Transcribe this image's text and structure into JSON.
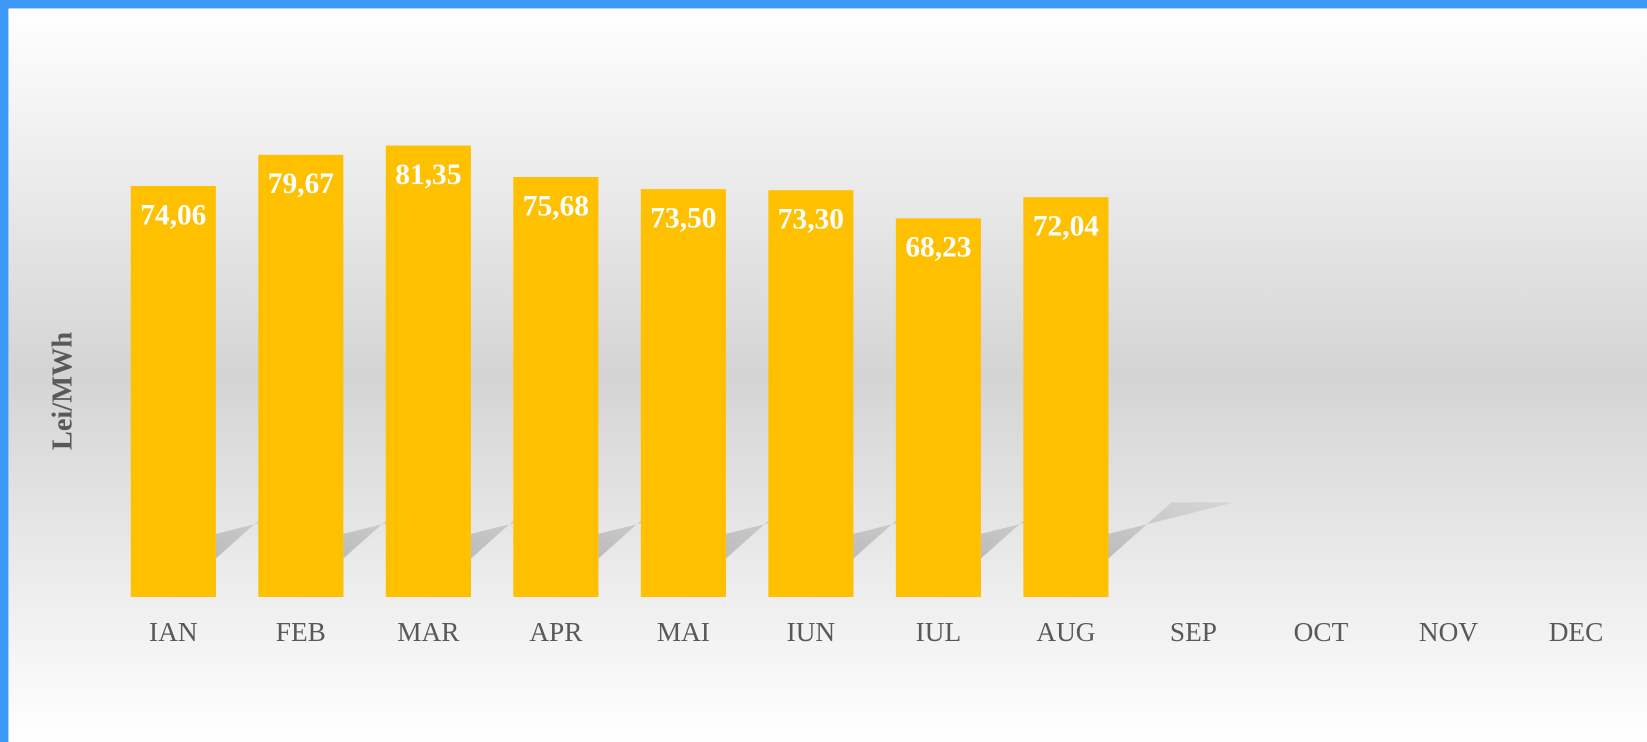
{
  "chart_data": {
    "type": "bar",
    "y_label": "Lei/MWh",
    "categories": [
      "IAN",
      "FEB",
      "MAR",
      "APR",
      "MAI",
      "IUN",
      "IUL",
      "AUG",
      "SEP",
      "OCT",
      "NOV",
      "DEC"
    ],
    "values": [
      74.06,
      79.67,
      81.35,
      75.68,
      73.5,
      73.3,
      68.23,
      72.04,
      null,
      null,
      null,
      null
    ],
    "value_labels": [
      "74,06",
      "79,67",
      "81,35",
      "75,68",
      "73,50",
      "73,30",
      "68,23",
      "72,04",
      null,
      null,
      null,
      null
    ],
    "color": "#ffc000"
  }
}
